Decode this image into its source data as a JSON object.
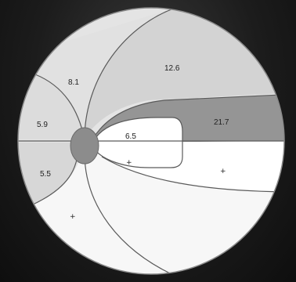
{
  "regions": {
    "top_right": "12.6",
    "upper_mid": "8.1",
    "left_mid": "5.9",
    "band": "21.7",
    "inner": "6.5",
    "lower_left": "5.5"
  },
  "markers": {
    "inner_plus": "+",
    "right_plus": "+",
    "bottom_plus": "+"
  },
  "colors": {
    "background": "#141414",
    "circle_fill": "#e6e6e6",
    "region_light": "#d6d6d6",
    "region_mid": "#c9c9c9",
    "region_dark": "#959595",
    "region_white": "#ffffff",
    "disc": "#8d8d8d",
    "stroke": "#5a5a5a"
  }
}
